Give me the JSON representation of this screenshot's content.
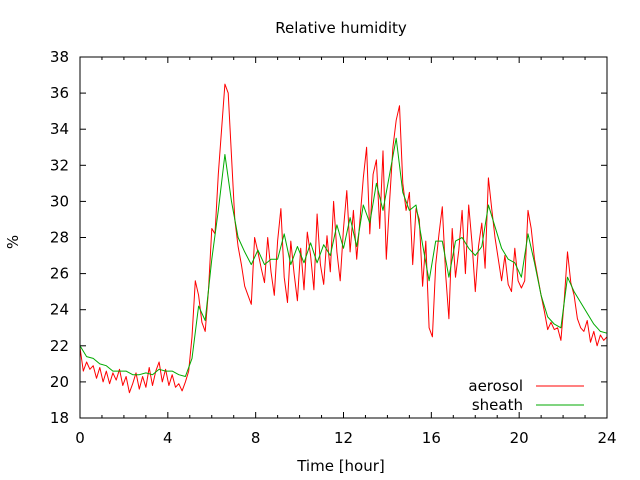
{
  "chart_data": {
    "type": "line",
    "title": "Relative humidity",
    "xlabel": "Time [hour]",
    "ylabel": "%",
    "xlim": [
      0,
      24
    ],
    "ylim": [
      18,
      38
    ],
    "xticks": [
      0,
      4,
      8,
      12,
      16,
      20,
      24
    ],
    "yticks": [
      18,
      20,
      22,
      24,
      26,
      28,
      30,
      32,
      34,
      36,
      38
    ],
    "grid": false,
    "legend_position": "bottom-right",
    "series": [
      {
        "name": "aerosol",
        "color": "#ff0000",
        "points": [
          [
            0.0,
            21.9
          ],
          [
            0.15,
            20.6
          ],
          [
            0.3,
            21.1
          ],
          [
            0.45,
            20.7
          ],
          [
            0.6,
            20.9
          ],
          [
            0.75,
            20.2
          ],
          [
            0.9,
            20.8
          ],
          [
            1.05,
            20.0
          ],
          [
            1.2,
            20.6
          ],
          [
            1.35,
            19.9
          ],
          [
            1.5,
            20.5
          ],
          [
            1.65,
            20.1
          ],
          [
            1.8,
            20.7
          ],
          [
            1.95,
            19.8
          ],
          [
            2.1,
            20.3
          ],
          [
            2.25,
            19.4
          ],
          [
            2.4,
            19.9
          ],
          [
            2.55,
            20.5
          ],
          [
            2.7,
            19.6
          ],
          [
            2.85,
            20.3
          ],
          [
            3.0,
            19.7
          ],
          [
            3.15,
            20.8
          ],
          [
            3.3,
            19.8
          ],
          [
            3.45,
            20.6
          ],
          [
            3.6,
            21.1
          ],
          [
            3.75,
            20.0
          ],
          [
            3.9,
            20.7
          ],
          [
            4.05,
            19.8
          ],
          [
            4.2,
            20.4
          ],
          [
            4.35,
            19.7
          ],
          [
            4.5,
            19.9
          ],
          [
            4.65,
            19.5
          ],
          [
            4.8,
            20.0
          ],
          [
            4.95,
            20.6
          ],
          [
            5.1,
            22.5
          ],
          [
            5.25,
            25.6
          ],
          [
            5.4,
            24.8
          ],
          [
            5.55,
            23.3
          ],
          [
            5.7,
            22.8
          ],
          [
            5.85,
            25.1
          ],
          [
            6.0,
            28.5
          ],
          [
            6.15,
            28.2
          ],
          [
            6.3,
            31.5
          ],
          [
            6.45,
            34.0
          ],
          [
            6.6,
            36.5
          ],
          [
            6.75,
            36.0
          ],
          [
            6.9,
            32.5
          ],
          [
            7.05,
            29.0
          ],
          [
            7.2,
            27.5
          ],
          [
            7.35,
            26.5
          ],
          [
            7.5,
            25.3
          ],
          [
            7.65,
            24.8
          ],
          [
            7.8,
            24.3
          ],
          [
            7.95,
            28.0
          ],
          [
            8.1,
            27.2
          ],
          [
            8.25,
            26.3
          ],
          [
            8.4,
            25.5
          ],
          [
            8.55,
            28.0
          ],
          [
            8.7,
            26.1
          ],
          [
            8.85,
            24.8
          ],
          [
            9.0,
            27.8
          ],
          [
            9.15,
            29.6
          ],
          [
            9.3,
            25.8
          ],
          [
            9.45,
            24.4
          ],
          [
            9.6,
            27.8
          ],
          [
            9.75,
            26.0
          ],
          [
            9.9,
            24.5
          ],
          [
            10.05,
            27.4
          ],
          [
            10.2,
            25.1
          ],
          [
            10.35,
            28.3
          ],
          [
            10.5,
            27.0
          ],
          [
            10.65,
            25.1
          ],
          [
            10.8,
            29.3
          ],
          [
            10.95,
            26.5
          ],
          [
            11.1,
            25.4
          ],
          [
            11.25,
            28.1
          ],
          [
            11.4,
            26.1
          ],
          [
            11.55,
            30.0
          ],
          [
            11.7,
            27.2
          ],
          [
            11.85,
            25.6
          ],
          [
            12.0,
            28.5
          ],
          [
            12.15,
            30.6
          ],
          [
            12.3,
            27.2
          ],
          [
            12.45,
            29.5
          ],
          [
            12.6,
            26.8
          ],
          [
            12.75,
            29.0
          ],
          [
            12.9,
            31.3
          ],
          [
            13.05,
            33.0
          ],
          [
            13.2,
            28.2
          ],
          [
            13.35,
            31.5
          ],
          [
            13.5,
            32.3
          ],
          [
            13.65,
            28.5
          ],
          [
            13.8,
            32.8
          ],
          [
            13.95,
            26.8
          ],
          [
            14.1,
            30.0
          ],
          [
            14.25,
            33.0
          ],
          [
            14.4,
            34.5
          ],
          [
            14.55,
            35.3
          ],
          [
            14.7,
            31.0
          ],
          [
            14.85,
            29.5
          ],
          [
            15.0,
            30.5
          ],
          [
            15.15,
            26.5
          ],
          [
            15.3,
            29.6
          ],
          [
            15.45,
            29.0
          ],
          [
            15.6,
            25.3
          ],
          [
            15.75,
            27.8
          ],
          [
            15.9,
            23.0
          ],
          [
            16.05,
            22.5
          ],
          [
            16.2,
            26.5
          ],
          [
            16.35,
            28.2
          ],
          [
            16.5,
            29.7
          ],
          [
            16.65,
            26.0
          ],
          [
            16.8,
            23.5
          ],
          [
            16.95,
            28.5
          ],
          [
            17.1,
            25.8
          ],
          [
            17.25,
            27.3
          ],
          [
            17.4,
            29.5
          ],
          [
            17.55,
            26.0
          ],
          [
            17.7,
            29.8
          ],
          [
            17.85,
            27.7
          ],
          [
            18.0,
            25.0
          ],
          [
            18.15,
            27.5
          ],
          [
            18.3,
            28.8
          ],
          [
            18.45,
            26.3
          ],
          [
            18.6,
            31.3
          ],
          [
            18.75,
            29.6
          ],
          [
            18.9,
            28.0
          ],
          [
            19.05,
            26.8
          ],
          [
            19.2,
            25.6
          ],
          [
            19.35,
            27.0
          ],
          [
            19.5,
            25.4
          ],
          [
            19.65,
            25.0
          ],
          [
            19.8,
            27.4
          ],
          [
            19.95,
            25.6
          ],
          [
            20.1,
            25.2
          ],
          [
            20.25,
            25.6
          ],
          [
            20.4,
            29.5
          ],
          [
            20.55,
            28.5
          ],
          [
            20.7,
            26.8
          ],
          [
            20.85,
            25.8
          ],
          [
            21.0,
            24.8
          ],
          [
            21.15,
            23.9
          ],
          [
            21.3,
            22.9
          ],
          [
            21.45,
            23.3
          ],
          [
            21.6,
            22.9
          ],
          [
            21.75,
            23.0
          ],
          [
            21.9,
            22.3
          ],
          [
            22.05,
            24.5
          ],
          [
            22.2,
            27.2
          ],
          [
            22.35,
            25.5
          ],
          [
            22.5,
            24.8
          ],
          [
            22.65,
            23.5
          ],
          [
            22.8,
            23.0
          ],
          [
            22.95,
            22.8
          ],
          [
            23.1,
            23.4
          ],
          [
            23.25,
            22.2
          ],
          [
            23.4,
            22.8
          ],
          [
            23.55,
            22.0
          ],
          [
            23.7,
            22.6
          ],
          [
            23.85,
            22.3
          ],
          [
            24.0,
            22.5
          ]
        ]
      },
      {
        "name": "sheath",
        "color": "#00aa00",
        "points": [
          [
            0.0,
            22.0
          ],
          [
            0.3,
            21.4
          ],
          [
            0.6,
            21.3
          ],
          [
            0.9,
            21.0
          ],
          [
            1.2,
            20.9
          ],
          [
            1.5,
            20.6
          ],
          [
            1.8,
            20.6
          ],
          [
            2.1,
            20.6
          ],
          [
            2.4,
            20.4
          ],
          [
            2.7,
            20.4
          ],
          [
            3.0,
            20.5
          ],
          [
            3.3,
            20.4
          ],
          [
            3.6,
            20.7
          ],
          [
            3.9,
            20.6
          ],
          [
            4.2,
            20.6
          ],
          [
            4.5,
            20.4
          ],
          [
            4.8,
            20.3
          ],
          [
            5.1,
            21.3
          ],
          [
            5.4,
            24.2
          ],
          [
            5.7,
            23.4
          ],
          [
            6.0,
            26.8
          ],
          [
            6.3,
            29.5
          ],
          [
            6.6,
            32.6
          ],
          [
            6.9,
            30.0
          ],
          [
            7.2,
            28.0
          ],
          [
            7.5,
            27.2
          ],
          [
            7.8,
            26.5
          ],
          [
            8.1,
            27.3
          ],
          [
            8.4,
            26.5
          ],
          [
            8.7,
            26.8
          ],
          [
            9.0,
            26.8
          ],
          [
            9.3,
            28.2
          ],
          [
            9.6,
            26.5
          ],
          [
            9.9,
            27.5
          ],
          [
            10.2,
            26.6
          ],
          [
            10.5,
            27.7
          ],
          [
            10.8,
            26.6
          ],
          [
            11.1,
            27.6
          ],
          [
            11.4,
            27.0
          ],
          [
            11.7,
            28.7
          ],
          [
            12.0,
            27.4
          ],
          [
            12.3,
            29.1
          ],
          [
            12.6,
            27.5
          ],
          [
            12.9,
            29.8
          ],
          [
            13.2,
            28.8
          ],
          [
            13.5,
            31.0
          ],
          [
            13.8,
            29.5
          ],
          [
            14.1,
            31.5
          ],
          [
            14.4,
            33.5
          ],
          [
            14.7,
            30.5
          ],
          [
            15.0,
            29.5
          ],
          [
            15.3,
            29.8
          ],
          [
            15.6,
            27.6
          ],
          [
            15.9,
            25.6
          ],
          [
            16.2,
            27.8
          ],
          [
            16.5,
            27.8
          ],
          [
            16.8,
            25.8
          ],
          [
            17.1,
            27.8
          ],
          [
            17.4,
            28.0
          ],
          [
            17.7,
            27.4
          ],
          [
            18.0,
            27.0
          ],
          [
            18.3,
            27.5
          ],
          [
            18.6,
            29.8
          ],
          [
            18.9,
            28.6
          ],
          [
            19.2,
            27.4
          ],
          [
            19.5,
            26.8
          ],
          [
            19.8,
            26.6
          ],
          [
            20.1,
            25.8
          ],
          [
            20.4,
            28.2
          ],
          [
            20.7,
            26.6
          ],
          [
            21.0,
            24.8
          ],
          [
            21.3,
            23.6
          ],
          [
            21.6,
            23.2
          ],
          [
            21.9,
            23.0
          ],
          [
            22.2,
            25.8
          ],
          [
            22.5,
            25.0
          ],
          [
            22.8,
            24.4
          ],
          [
            23.1,
            23.8
          ],
          [
            23.4,
            23.2
          ],
          [
            23.7,
            22.8
          ],
          [
            24.0,
            22.7
          ]
        ]
      }
    ]
  }
}
